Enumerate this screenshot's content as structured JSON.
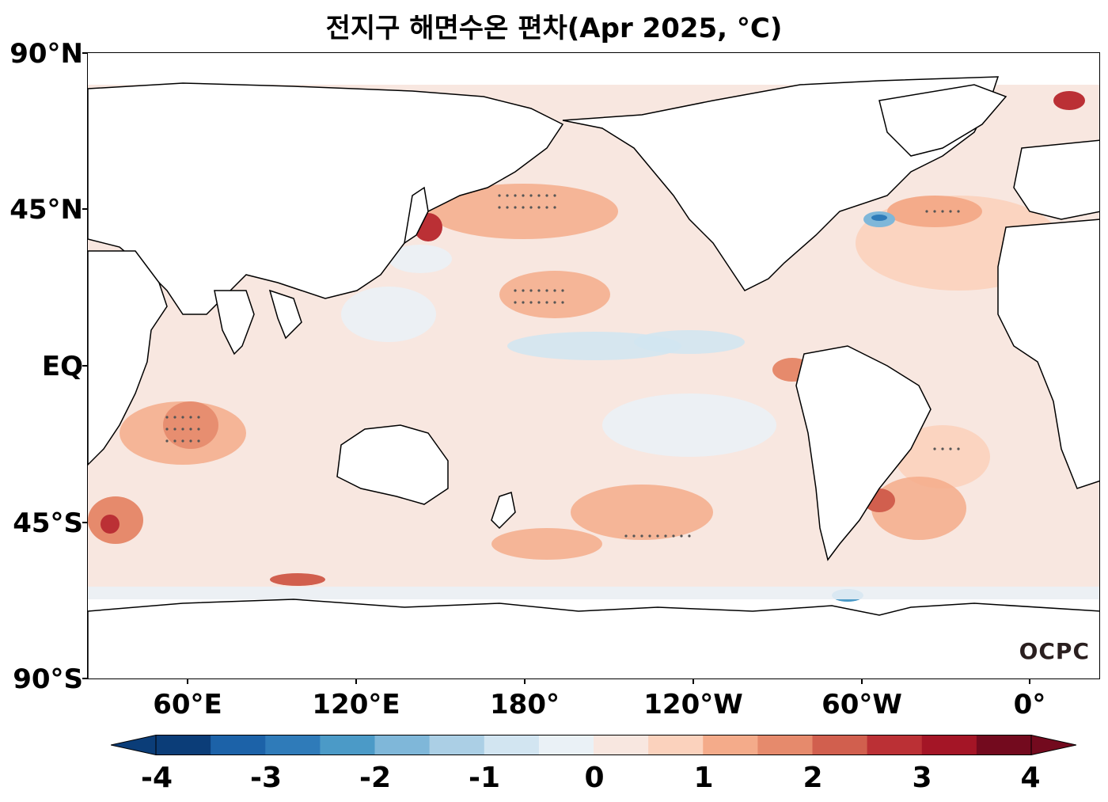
{
  "title": "전지구 해면수온 편차(Apr 2025, °C)",
  "lat_labels": [
    "90°N",
    "45°N",
    "EQ",
    "45°S",
    "90°S"
  ],
  "lon_labels": [
    "60°E",
    "120°E",
    "180°",
    "120°W",
    "60°W",
    "0°"
  ],
  "watermark": "OCPC",
  "colorbar": {
    "colors": [
      "#0b3d78",
      "#1c62a8",
      "#2f7bb9",
      "#4b9ac7",
      "#7fb7d9",
      "#abcfe5",
      "#d2e5f1",
      "#eaf1f6",
      "#f8e7e0",
      "#fbd2bd",
      "#f4ab8a",
      "#e68a6c",
      "#d15f4e",
      "#bb3035",
      "#a41526",
      "#730a1e"
    ],
    "tick_labels": [
      "-4",
      "-3",
      "-2",
      "-1",
      "0",
      "1",
      "2",
      "3",
      "4"
    ],
    "min": -4,
    "max": 4,
    "extend": "both"
  }
}
